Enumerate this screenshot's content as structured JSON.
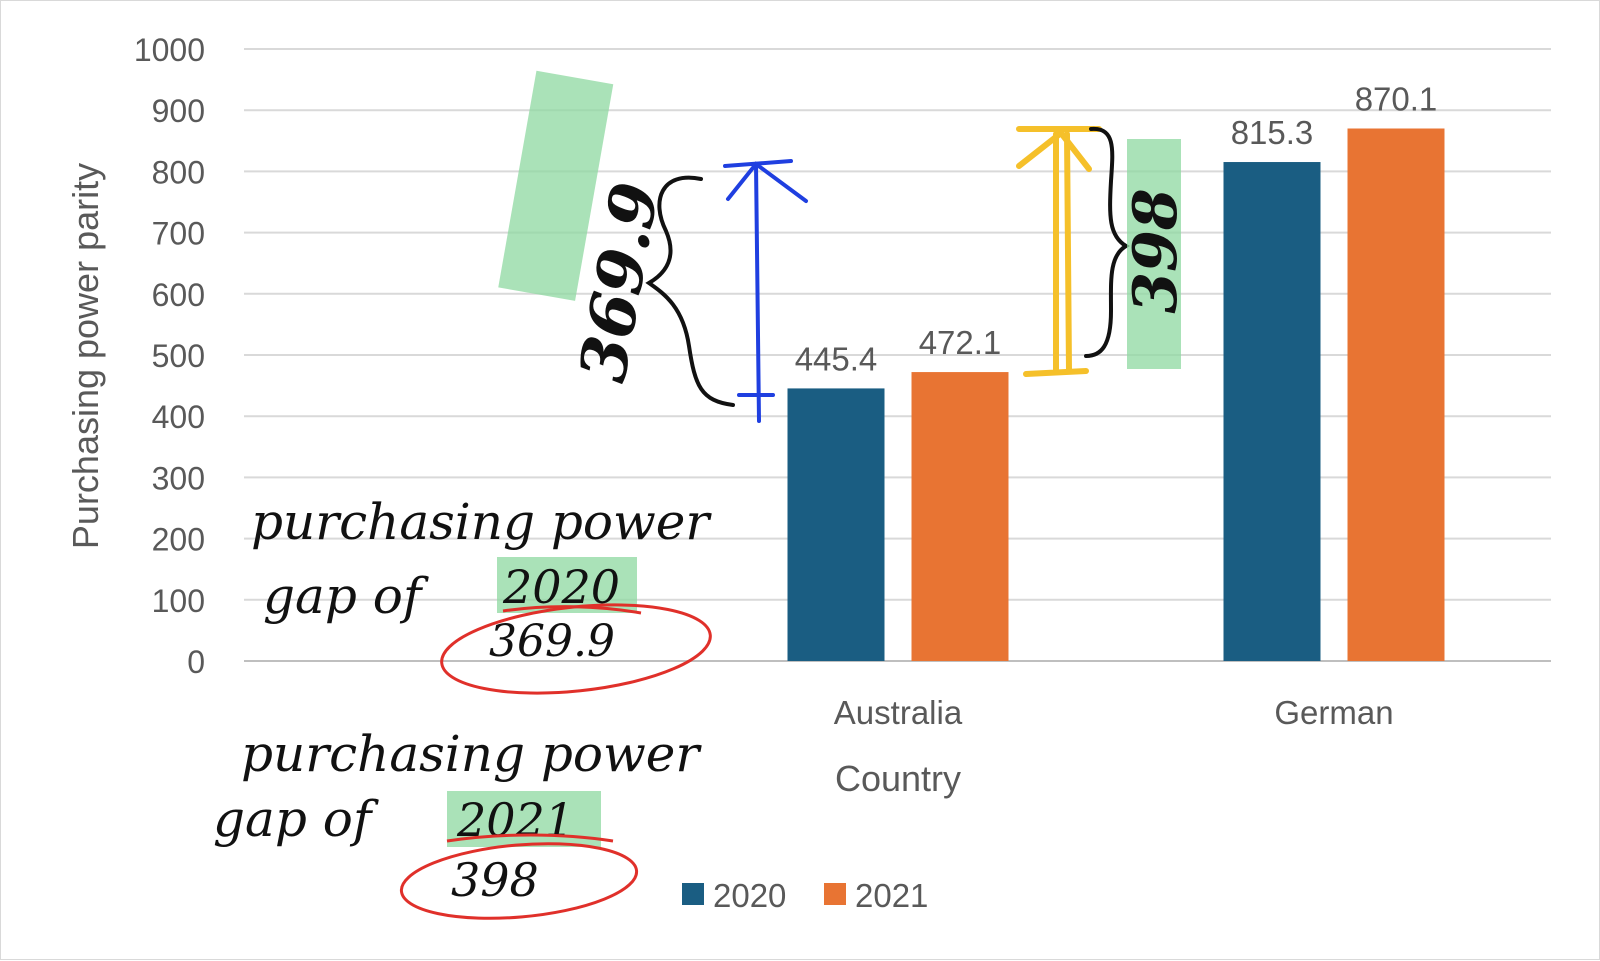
{
  "chart_data": {
    "type": "bar",
    "xlabel": "Country",
    "ylabel": "Purchasing power parity",
    "ylim": [
      0,
      1000
    ],
    "yticks": [
      0,
      100,
      200,
      300,
      400,
      500,
      600,
      700,
      800,
      900,
      1000
    ],
    "grid": true,
    "legend_position": "bottom",
    "categories": [
      "Australia",
      "German"
    ],
    "series": [
      {
        "name": "2020",
        "values": [
          445.4,
          815.3
        ],
        "color": "#1a5d82"
      },
      {
        "name": "2021",
        "values": [
          472.1,
          870.1
        ],
        "color": "#e87433"
      }
    ],
    "data_labels": [
      [
        "445.4",
        "815.3"
      ],
      [
        "472.1",
        "870.1"
      ]
    ]
  },
  "annotations": {
    "note_2020_line1": "purchasing power",
    "note_2020_line2": "gap of",
    "note_2020_year": "2020",
    "note_2020_value": "369.9",
    "note_2021_line1": "purchasing power",
    "note_2021_line2": "gap of",
    "note_2021_year": "2021",
    "note_2021_value": "398",
    "gap_2020_label": "369.9",
    "gap_2021_label": "398",
    "colors": {
      "highlight": "#8ed8a0",
      "blue_arrow": "#1f3fe0",
      "yellow_arrow": "#f5c02a",
      "red_circle": "#e0302a",
      "ink": "#111111"
    }
  }
}
